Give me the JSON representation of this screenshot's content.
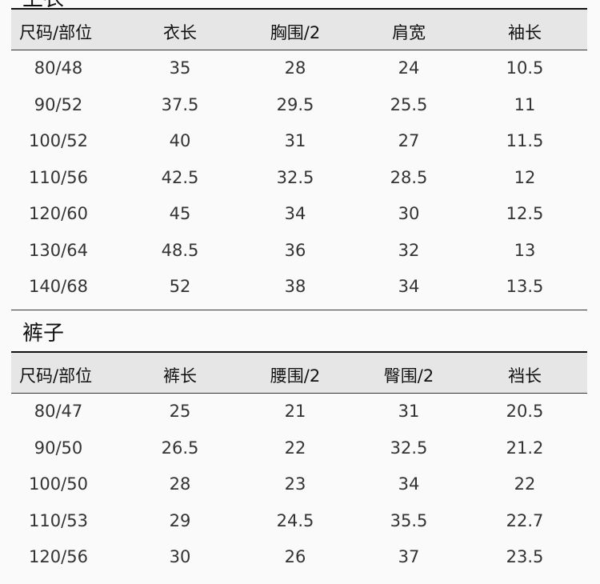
{
  "tops": {
    "title": "上衣",
    "headers": [
      "尺码/部位",
      "衣长",
      "胸围/2",
      "肩宽",
      "袖长"
    ],
    "rows": [
      [
        "80/48",
        "35",
        "28",
        "24",
        "10.5"
      ],
      [
        "90/52",
        "37.5",
        "29.5",
        "25.5",
        "11"
      ],
      [
        "100/52",
        "40",
        "31",
        "27",
        "11.5"
      ],
      [
        "110/56",
        "42.5",
        "32.5",
        "28.5",
        "12"
      ],
      [
        "120/60",
        "45",
        "34",
        "30",
        "12.5"
      ],
      [
        "130/64",
        "48.5",
        "36",
        "32",
        "13"
      ],
      [
        "140/68",
        "52",
        "38",
        "34",
        "13.5"
      ]
    ]
  },
  "pants": {
    "title": "裤子",
    "headers": [
      "尺码/部位",
      "裤长",
      "腰围/2",
      "臀围/2",
      "裆长"
    ],
    "rows": [
      [
        "80/47",
        "25",
        "21",
        "31",
        "20.5"
      ],
      [
        "90/50",
        "26.5",
        "22",
        "32.5",
        "21.2"
      ],
      [
        "100/50",
        "28",
        "23",
        "34",
        "22"
      ],
      [
        "110/53",
        "29",
        "24.5",
        "35.5",
        "22.7"
      ],
      [
        "120/56",
        "30",
        "26",
        "37",
        "23.5"
      ]
    ]
  }
}
